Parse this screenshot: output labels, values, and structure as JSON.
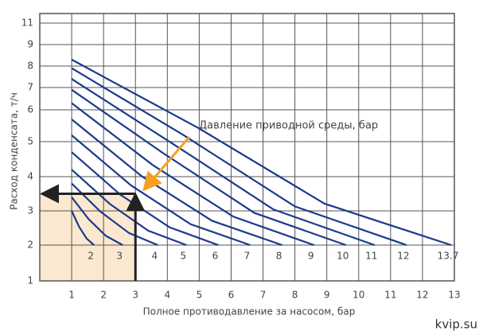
{
  "chart_data": {
    "type": "line",
    "x_label": "Полное противодавление за насосом, бар",
    "y_label": "Расход конденсата, т/ч",
    "annotation": "Давление приводной среды, бар",
    "watermark": "kvip.su",
    "xlim": [
      0,
      13
    ],
    "xticks": [
      1,
      2,
      3,
      4,
      5,
      6,
      7,
      8,
      9,
      10,
      11,
      12,
      13
    ],
    "ylim": [
      1,
      11
    ],
    "yticks": [
      1,
      2,
      3,
      4,
      5,
      6,
      7,
      8,
      9,
      11
    ],
    "grid": true,
    "example": {
      "x": 3,
      "y": 3.5
    },
    "series": [
      {
        "name": "2",
        "color": "#1a3a8c",
        "x": [
          1,
          1.23,
          1.47,
          1.7
        ],
        "values": [
          3.0,
          2.54,
          2.19,
          2
        ]
      },
      {
        "name": "3",
        "color": "#1a3a8c",
        "x": [
          1,
          1.53,
          2.07,
          2.6
        ],
        "values": [
          3.4,
          2.76,
          2.27,
          2
        ]
      },
      {
        "name": "4",
        "color": "#1a3a8c",
        "x": [
          1,
          1.9,
          2.8,
          3.7
        ],
        "values": [
          3.8,
          2.98,
          2.35,
          2
        ]
      },
      {
        "name": "5",
        "color": "#1a3a8c",
        "x": [
          1,
          2.2,
          3.4,
          4.6
        ],
        "values": [
          4.2,
          3.2,
          2.42,
          2
        ]
      },
      {
        "name": "6",
        "color": "#1a3a8c",
        "x": [
          1,
          2.53,
          4.07,
          5.6
        ],
        "values": [
          4.7,
          3.47,
          2.52,
          2
        ]
      },
      {
        "name": "7",
        "color": "#1a3a8c",
        "x": [
          1,
          2.87,
          4.73,
          6.6
        ],
        "values": [
          5.2,
          3.74,
          2.61,
          2
        ]
      },
      {
        "name": "8",
        "color": "#1a3a8c",
        "x": [
          1,
          3.2,
          5.4,
          7.6
        ],
        "values": [
          5.7,
          4.01,
          2.71,
          2
        ]
      },
      {
        "name": "9",
        "color": "#1a3a8c",
        "x": [
          1,
          3.53,
          6.07,
          8.6
        ],
        "values": [
          6.3,
          4.34,
          2.83,
          2
        ]
      },
      {
        "name": "10",
        "color": "#1a3a8c",
        "x": [
          1,
          3.87,
          6.73,
          9.6
        ],
        "values": [
          6.9,
          4.67,
          2.94,
          2
        ]
      },
      {
        "name": "11",
        "color": "#1a3a8c",
        "x": [
          1,
          4.17,
          7.33,
          10.5
        ],
        "values": [
          7.4,
          4.94,
          3.04,
          2
        ]
      },
      {
        "name": "12",
        "color": "#1a3a8c",
        "x": [
          1,
          4.5,
          8,
          11.5
        ],
        "values": [
          7.9,
          5.21,
          3.13,
          2
        ]
      },
      {
        "name": "13.7",
        "color": "#1a3a8c",
        "x": [
          1,
          4.97,
          8.93,
          12.9
        ],
        "values": [
          8.3,
          5.43,
          3.21,
          2
        ]
      }
    ]
  }
}
